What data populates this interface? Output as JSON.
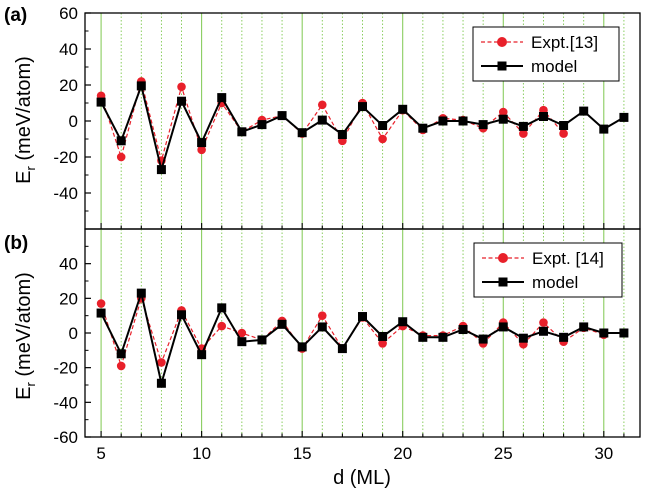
{
  "chart_data": [
    {
      "type": "line",
      "panel_label": "(a)",
      "xlim": [
        4.2,
        31.8
      ],
      "ylim": [
        -60,
        60
      ],
      "yticks": [
        -40,
        -20,
        0,
        20,
        40,
        60
      ],
      "grid_x": {
        "solid": [
          5,
          10,
          15,
          20,
          25,
          30
        ],
        "dotted": "every integer",
        "color": "#7ec850"
      },
      "legend": "top-right",
      "series": [
        {
          "name": "Expt.[13]",
          "style": "red dashed line, filled circles",
          "color": "#e8202a",
          "x": [
            5,
            6,
            7,
            8,
            9,
            10,
            11,
            12,
            13,
            14,
            15,
            16,
            17,
            18,
            19,
            20,
            21,
            22,
            23,
            24,
            25,
            26,
            27,
            28
          ],
          "y": [
            14,
            -20,
            22,
            -22,
            19,
            -16,
            10,
            -6,
            0.5,
            3,
            -7,
            9,
            -11,
            10,
            -10,
            6,
            -5,
            1.5,
            0.5,
            -4,
            5,
            -7,
            6,
            -7
          ]
        },
        {
          "name": "model",
          "style": "black solid line, filled squares",
          "color": "#000000",
          "x": [
            5,
            6,
            7,
            8,
            9,
            10,
            11,
            12,
            13,
            14,
            15,
            16,
            17,
            18,
            19,
            20,
            21,
            22,
            23,
            24,
            25,
            26,
            27,
            28,
            29,
            30,
            31
          ],
          "y": [
            10.5,
            -11,
            19.5,
            -27,
            11,
            -12,
            13,
            -6,
            -2,
            3,
            -6.5,
            0.5,
            -7.5,
            8,
            -2.5,
            6.5,
            -4,
            0,
            0,
            -2,
            1,
            -3,
            2.5,
            -2.5,
            5.5,
            -4.5,
            2
          ]
        }
      ]
    },
    {
      "type": "line",
      "panel_label": "(b)",
      "xlabel": "d (ML)",
      "xlim": [
        4.2,
        31.8
      ],
      "ylim": [
        -60,
        60
      ],
      "xticks": [
        5,
        10,
        15,
        20,
        25,
        30
      ],
      "yticks": [
        -60,
        -40,
        -20,
        0,
        20,
        40
      ],
      "grid_x": {
        "solid": [
          5,
          10,
          15,
          20,
          25,
          30
        ],
        "dotted": "every integer",
        "color": "#7ec850"
      },
      "legend": "top-right",
      "series": [
        {
          "name": "Expt. [14]",
          "style": "red dashed line, filled circles",
          "color": "#e8202a",
          "x": [
            5,
            6,
            7,
            8,
            9,
            10,
            11,
            12,
            13,
            14,
            15,
            16,
            17,
            18,
            19,
            20,
            21,
            22,
            23,
            24,
            25,
            26,
            27,
            28,
            29,
            30
          ],
          "y": [
            17,
            -19,
            20,
            -17,
            13,
            -9,
            4,
            0,
            -4,
            7,
            -9,
            10,
            -9,
            9,
            -6,
            4,
            -1.5,
            -1.5,
            4,
            -6,
            6,
            -6.5,
            6,
            -5,
            3,
            -1
          ]
        },
        {
          "name": "model",
          "style": "black solid line, filled squares",
          "color": "#000000",
          "x": [
            5,
            6,
            7,
            8,
            9,
            10,
            11,
            12,
            13,
            14,
            15,
            16,
            17,
            18,
            19,
            20,
            21,
            22,
            23,
            24,
            25,
            26,
            27,
            28,
            29,
            30,
            31
          ],
          "y": [
            11.5,
            -12,
            23,
            -29,
            10.5,
            -12.5,
            14.5,
            -5,
            -4,
            5,
            -8,
            3.5,
            -9,
            9.5,
            -2,
            6.5,
            -2.5,
            -2.5,
            2,
            -3.5,
            3.5,
            -3,
            1,
            -2.5,
            3.5,
            0,
            0
          ]
        }
      ]
    }
  ],
  "shared": {
    "ylabel_main": "E",
    "ylabel_sub": "r",
    "ylabel_units": " (meV/atom)"
  }
}
